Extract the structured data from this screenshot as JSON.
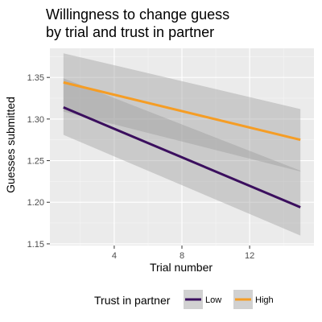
{
  "chart_data": {
    "type": "line",
    "title": [
      "Willingness to change guess",
      "by trial and trust in partner"
    ],
    "xlabel": "Trial number",
    "ylabel": "Guesses submitted",
    "xlim": [
      0.2,
      15.8
    ],
    "ylim": [
      1.148,
      1.385
    ],
    "xticks": [
      4,
      8,
      12
    ],
    "yticks": [
      1.15,
      1.2,
      1.25,
      1.3,
      1.35
    ],
    "ytick_labels": [
      "1.15",
      "1.20",
      "1.25",
      "1.30",
      "1.35"
    ],
    "grid": true,
    "legend_position": "bottom",
    "legend_title": "Trust in partner",
    "series": [
      {
        "name": "Low",
        "color": "#3b0f5e",
        "x": [
          1,
          15
        ],
        "y": [
          1.314,
          1.194
        ],
        "ci_lower": [
          1.281,
          1.16
        ],
        "ci_upper": [
          1.349,
          1.238
        ]
      },
      {
        "name": "High",
        "color": "#f59d25",
        "x": [
          1,
          15
        ],
        "y": [
          1.344,
          1.275
        ],
        "ci_lower": [
          1.309,
          1.237
        ],
        "ci_upper": [
          1.379,
          1.312
        ]
      }
    ]
  }
}
